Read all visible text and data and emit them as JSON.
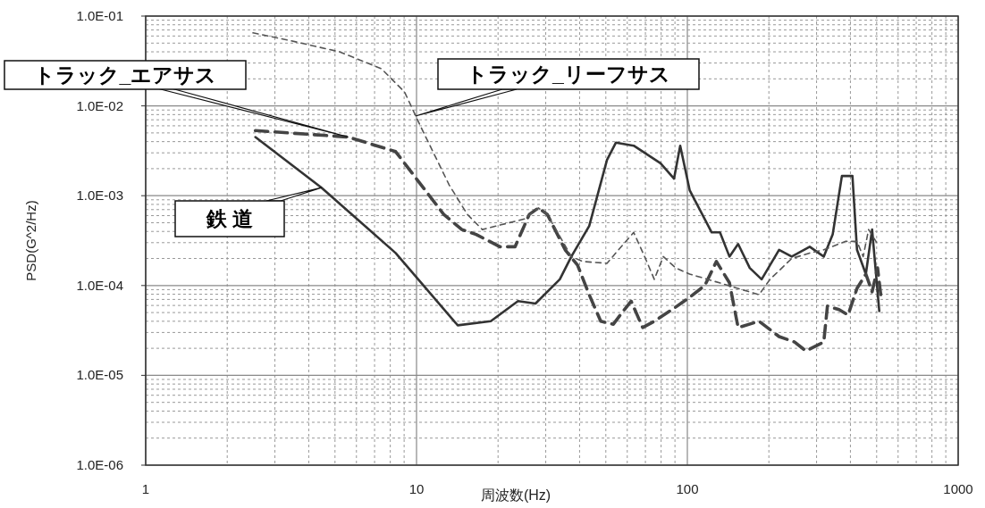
{
  "chart_data": {
    "type": "line",
    "xlabel": "周波数(Hz)",
    "ylabel": "PSD(G^2/Hz)",
    "log": "xy",
    "grid": true,
    "marker": "none",
    "xlim": [
      1,
      1000
    ],
    "xticks": [
      1,
      10,
      100,
      1000
    ],
    "ylim": [
      1e-06,
      0.1
    ],
    "yticks": [
      {
        "value": 1e-06,
        "label": "1.0E-06"
      },
      {
        "value": 1e-05,
        "label": "1.0E-05"
      },
      {
        "value": 0.0001,
        "label": "1.0E-04"
      },
      {
        "value": 0.001,
        "label": "1.0E-03"
      },
      {
        "value": 0.01,
        "label": "1.0E-02"
      },
      {
        "value": 0.1,
        "label": "1.0E-01"
      }
    ],
    "series": [
      {
        "color": "#333333",
        "line_style": "solid",
        "x": [
          2.54,
          4.46,
          8.37,
          14.2,
          18.8,
          23.7,
          27.5,
          33.8,
          37.3,
          43.4,
          50.5,
          54.5,
          63.4,
          79.6,
          89.3,
          94.1,
          102,
          123,
          132,
          143,
          154,
          170,
          188,
          218,
          243,
          283,
          319,
          344,
          372,
          407,
          423,
          456,
          481,
          511
        ],
        "values": [
          0.0045,
          0.00123,
          0.00023,
          3.6e-05,
          4e-05,
          6.7e-05,
          6.3e-05,
          0.000117,
          0.00021,
          0.00046,
          0.0025,
          0.0039,
          0.0036,
          0.0023,
          0.00155,
          0.0036,
          0.00115,
          0.00039,
          0.00039,
          0.00021,
          0.00029,
          0.000157,
          0.000117,
          0.00025,
          0.00021,
          0.00027,
          0.00021,
          0.00037,
          0.00166,
          0.00166,
          0.00025,
          0.000134,
          0.00042,
          5.2e-05
        ]
      },
      {
        "color": "#444444",
        "line_style": "dashed",
        "x": [
          2.54,
          5.6,
          8.37,
          12.6,
          14.7,
          16.6,
          20.3,
          23.1,
          24.2,
          26.1,
          28.2,
          30.4,
          35.4,
          39.3,
          43.4,
          47.9,
          53.3,
          57.4,
          62.0,
          68.4,
          75.5,
          87.9,
          102,
          116,
          128,
          143,
          154,
          184,
          218,
          249,
          274,
          319,
          329,
          363,
          392,
          423,
          456,
          481,
          504,
          519
        ],
        "values": [
          0.0053,
          0.0045,
          0.0031,
          0.00062,
          0.00042,
          0.00037,
          0.00027,
          0.00027,
          0.00037,
          0.00062,
          0.00073,
          0.00062,
          0.00025,
          0.000169,
          7.9e-05,
          4e-05,
          3.7e-05,
          5e-05,
          6.7e-05,
          3.4e-05,
          4e-05,
          5.4e-05,
          7.4e-05,
          0.0001,
          0.000185,
          0.000107,
          3.4e-05,
          4e-05,
          2.7e-05,
          2.35e-05,
          1.87e-05,
          2.35e-05,
          5.9e-05,
          5.4e-05,
          4.7e-05,
          9.3e-05,
          0.000134,
          8.5e-05,
          0.000157,
          7.4e-05
        ]
      },
      {
        "color": "#555555",
        "line_style": "dashed",
        "x": [
          2.49,
          3.55,
          5.19,
          7.41,
          9.03,
          10.3,
          11.9,
          13.2,
          15.4,
          17.5,
          21.4,
          25.0,
          28.2,
          30.4,
          37.3,
          41.1,
          50.5,
          55.7,
          63.4,
          70.0,
          75.5,
          81.5,
          90.6,
          102,
          119,
          184,
          202,
          243,
          283,
          319,
          383,
          423,
          446,
          467,
          504
        ],
        "values": [
          0.065,
          0.052,
          0.04,
          0.026,
          0.0143,
          0.0061,
          0.0025,
          0.00132,
          0.00062,
          0.00042,
          0.00049,
          0.00055,
          0.00073,
          0.00062,
          0.00021,
          0.000185,
          0.000177,
          0.00025,
          0.00039,
          0.0002,
          0.000117,
          0.00021,
          0.000157,
          0.000134,
          0.000117,
          7.9e-05,
          0.000117,
          0.0002,
          0.00023,
          0.00025,
          0.00031,
          0.00031,
          0.00021,
          0.00042,
          0.00029
        ]
      }
    ],
    "annotations": [
      {
        "text": "トラック_エアサス",
        "x": 5.6,
        "y": 0.0045
      },
      {
        "text": "トラック_リーフサス",
        "x": 9.9,
        "y": 0.0077
      },
      {
        "text": "鉄 道",
        "x": 4.46,
        "y": 0.00123
      }
    ]
  }
}
